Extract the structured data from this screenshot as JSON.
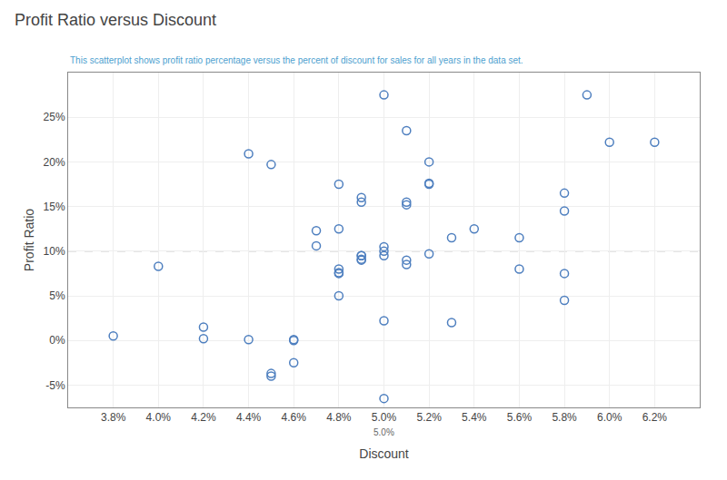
{
  "chart_data": {
    "type": "scatter",
    "title": "Profit Ratio versus Discount",
    "subtitle": "This scatterplot shows profit ratio percentage versus the percent of discount for sales for all years in the data set.",
    "xlabel": "Discount",
    "ylabel": "Profit Ratio",
    "color": "#4e7fbf",
    "marker": "circle-open",
    "grid": true,
    "xlim": [
      0.036,
      0.064
    ],
    "ylim": [
      -0.075,
      0.3
    ],
    "xticks": [
      {
        "value": 0.038,
        "label": "3.8%"
      },
      {
        "value": 0.04,
        "label": "4.0%"
      },
      {
        "value": 0.042,
        "label": "4.2%"
      },
      {
        "value": 0.044,
        "label": "4.4%"
      },
      {
        "value": 0.046,
        "label": "4.6%"
      },
      {
        "value": 0.048,
        "label": "4.8%"
      },
      {
        "value": 0.05,
        "label": "5.0%"
      },
      {
        "value": 0.052,
        "label": "5.2%"
      },
      {
        "value": 0.054,
        "label": "5.4%"
      },
      {
        "value": 0.056,
        "label": "5.6%"
      },
      {
        "value": 0.058,
        "label": "5.8%"
      },
      {
        "value": 0.06,
        "label": "6.0%"
      },
      {
        "value": 0.062,
        "label": "6.2%"
      }
    ],
    "yticks": [
      {
        "value": -0.05,
        "label": "-5%"
      },
      {
        "value": 0.0,
        "label": "0%"
      },
      {
        "value": 0.05,
        "label": "5%"
      },
      {
        "value": 0.1,
        "label": "10%"
      },
      {
        "value": 0.15,
        "label": "15%"
      },
      {
        "value": 0.2,
        "label": "20%"
      },
      {
        "value": 0.25,
        "label": "25%"
      }
    ],
    "ref_lines": [
      {
        "axis": "x",
        "value": 0.05,
        "color": "#aaaaaa",
        "line_style": "dash"
      },
      {
        "axis": "y",
        "value": 0.1,
        "color": "#aaaaaa",
        "line_style": "dash"
      }
    ],
    "annotations": [
      {
        "text": "5.0%",
        "x": 0.05
      }
    ],
    "x": [
      0.038,
      0.04,
      0.042,
      0.042,
      0.044,
      0.044,
      0.045,
      0.045,
      0.045,
      0.046,
      0.046,
      0.046,
      0.047,
      0.047,
      0.048,
      0.048,
      0.048,
      0.048,
      0.048,
      0.048,
      0.049,
      0.049,
      0.049,
      0.049,
      0.049,
      0.049,
      0.05,
      0.05,
      0.05,
      0.05,
      0.05,
      0.05,
      0.051,
      0.051,
      0.051,
      0.051,
      0.051,
      0.052,
      0.052,
      0.052,
      0.052,
      0.053,
      0.053,
      0.054,
      0.056,
      0.056,
      0.058,
      0.058,
      0.058,
      0.058,
      0.059,
      0.06,
      0.062
    ],
    "values": [
      0.005,
      0.083,
      0.015,
      0.002,
      0.001,
      0.209,
      0.197,
      -0.037,
      -0.04,
      -0.025,
      0.0,
      0.001,
      0.123,
      0.106,
      0.175,
      0.05,
      0.125,
      0.08,
      0.075,
      0.076,
      0.155,
      0.16,
      0.095,
      0.095,
      0.09,
      0.091,
      0.275,
      0.105,
      0.1,
      0.095,
      0.022,
      -0.065,
      0.235,
      0.155,
      0.152,
      0.09,
      0.085,
      0.175,
      0.176,
      0.2,
      0.097,
      0.115,
      0.02,
      0.125,
      0.115,
      0.08,
      0.165,
      0.145,
      0.075,
      0.045,
      0.275,
      0.222,
      0.222
    ]
  }
}
